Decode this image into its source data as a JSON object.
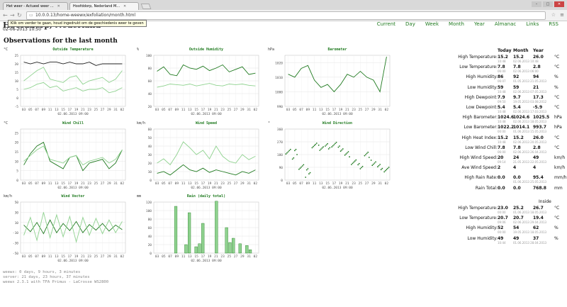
{
  "browser": {
    "tabs": [
      {
        "label": "Het weer - Actueel weer ..."
      },
      {
        "label": "Hoofddorp, Nederland M..."
      }
    ],
    "url": "10.0.0.13/home-weewx/exfoliation/month.html",
    "tooltip": "Klik om verder te gaan, houd ingedrukt om de geschiedenis weer te geven"
  },
  "site": {
    "title": "Hoofddorp, Nederland",
    "time": "02-06-2013 10:50",
    "heading": "Observations for the last month"
  },
  "nav": [
    "Current",
    "Day",
    "Week",
    "Month",
    "Year",
    "Almanac",
    "Links",
    "RSS"
  ],
  "colors": {
    "accent": "#1f7a1f",
    "light_green": "#8fd28f",
    "dark_line": "#222222"
  },
  "charts": [
    {
      "title": "Outside Temperature",
      "legend": [
        "Outside Temperature",
        "Dew Point",
        "Inside Temperature"
      ],
      "unit": "°C",
      "y_ticks": [
        "-5",
        "0",
        "5",
        "10",
        "15",
        "20",
        "25"
      ],
      "x_ticks": [
        "03",
        "05",
        "07",
        "09",
        "11",
        "13",
        "15",
        "17",
        "19",
        "21",
        "23",
        "25",
        "27",
        "29",
        "31",
        "02"
      ],
      "date": "02.06.2013 09:00"
    },
    {
      "title": "Outside Humidity",
      "legend": [
        "Outside Humidity",
        "Inside Humidity"
      ],
      "unit": "%",
      "y_ticks": [
        "20",
        "40",
        "60",
        "80",
        "100"
      ],
      "x_ticks": [
        "03",
        "05",
        "07",
        "09",
        "11",
        "13",
        "15",
        "17",
        "19",
        "21",
        "23",
        "25",
        "27",
        "29",
        "31",
        "02"
      ],
      "date": "02.06.2013 09:00"
    },
    {
      "title": "Barometer",
      "legend": [
        "Barometer"
      ],
      "unit": "hPa",
      "y_ticks": [
        "990",
        "1000",
        "1010",
        "1020"
      ],
      "x_ticks": [
        "03",
        "05",
        "07",
        "09",
        "11",
        "13",
        "15",
        "17",
        "19",
        "21",
        "23",
        "25",
        "27",
        "29",
        "31",
        "02"
      ],
      "date": "02.06.2013 09:00"
    },
    {
      "title": "Wind Chill",
      "legend": [
        "Wind Chill",
        "Heat Index"
      ],
      "unit": "°C",
      "y_ticks": [
        "0",
        "5",
        "10",
        "15",
        "20",
        "25"
      ],
      "x_ticks": [
        "03",
        "05",
        "07",
        "09",
        "11",
        "13",
        "15",
        "17",
        "19",
        "21",
        "23",
        "25",
        "27",
        "29",
        "31",
        "02"
      ],
      "date": "02.06.2013 09:00"
    },
    {
      "title": "Wind Speed",
      "legend": [
        "Wind Speed",
        "Gust Speed"
      ],
      "unit": "km/h",
      "y_ticks": [
        "0",
        "10",
        "20",
        "30",
        "40",
        "50",
        "60"
      ],
      "x_ticks": [
        "03",
        "05",
        "07",
        "09",
        "11",
        "13",
        "15",
        "17",
        "19",
        "21",
        "23",
        "25",
        "27",
        "29",
        "31",
        "02"
      ],
      "date": "02.06.2013 09:00"
    },
    {
      "title": "Wind Direction",
      "legend": [
        "Wind Direction"
      ],
      "unit": "°",
      "y_ticks": [
        "0",
        "90",
        "180",
        "270",
        "360"
      ],
      "x_ticks": [
        "03",
        "05",
        "07",
        "09",
        "11",
        "13",
        "15",
        "17",
        "19",
        "21",
        "23",
        "25",
        "27",
        "29",
        "31",
        "02"
      ],
      "date": "02.06.2013 09:00"
    },
    {
      "title": "Wind Vector",
      "legend": [
        "Wind Vector",
        "Gust Vector"
      ],
      "unit": "km/h",
      "y_ticks": [
        "-50",
        "-30",
        "-10",
        "10",
        "30",
        "50"
      ],
      "x_ticks": [
        "03",
        "05",
        "07",
        "09",
        "11",
        "13",
        "15",
        "17",
        "19",
        "21",
        "23",
        "25",
        "27",
        "29",
        "31",
        "02"
      ],
      "date": "02.06.2013 09:00"
    },
    {
      "title": "Rain (daily total)",
      "legend": [
        "Rain (daily total)"
      ],
      "unit": "mm",
      "y_ticks": [
        "0",
        "20",
        "40",
        "60",
        "80",
        "100",
        "120"
      ],
      "x_ticks": [
        "03",
        "05",
        "07",
        "09",
        "11",
        "13",
        "15",
        "17",
        "19",
        "21",
        "23",
        "25",
        "27",
        "29",
        "31",
        "02"
      ],
      "date": "02.06.2013 09:00"
    }
  ],
  "chart_data": [
    {
      "type": "line",
      "title": "Outside Temperature",
      "ylabel": "°C",
      "ylim": [
        -5,
        25
      ],
      "x": [
        "03",
        "05",
        "07",
        "09",
        "11",
        "13",
        "15",
        "17",
        "19",
        "21",
        "23",
        "25",
        "27",
        "29",
        "31",
        "02"
      ],
      "series": [
        {
          "name": "Inside Temperature",
          "values": [
            21,
            20,
            21,
            20,
            21,
            21,
            20,
            21,
            20,
            20,
            21,
            19,
            20,
            20,
            20,
            20
          ]
        },
        {
          "name": "Outside Temperature",
          "values": [
            10,
            13,
            16,
            18,
            11,
            10,
            9,
            12,
            13,
            8,
            10,
            11,
            12,
            9,
            11,
            16
          ]
        },
        {
          "name": "Dew Point",
          "values": [
            5,
            6,
            8,
            9,
            6,
            7,
            4,
            5,
            6,
            4,
            5,
            5,
            6,
            3,
            4,
            6
          ]
        }
      ]
    },
    {
      "type": "line",
      "title": "Outside Humidity",
      "ylabel": "%",
      "ylim": [
        20,
        100
      ],
      "x": [
        "03",
        "05",
        "07",
        "09",
        "11",
        "13",
        "15",
        "17",
        "19",
        "21",
        "23",
        "25",
        "27",
        "29",
        "31",
        "02"
      ],
      "series": [
        {
          "name": "Outside Humidity",
          "values": [
            75,
            82,
            70,
            68,
            85,
            80,
            78,
            83,
            76,
            80,
            85,
            74,
            78,
            82,
            70,
            72
          ]
        },
        {
          "name": "Inside Humidity",
          "values": [
            50,
            52,
            55,
            54,
            53,
            55,
            52,
            54,
            56,
            53,
            52,
            55,
            54,
            55,
            53,
            52
          ]
        }
      ]
    },
    {
      "type": "line",
      "title": "Barometer",
      "ylabel": "hPa",
      "ylim": [
        990,
        1025
      ],
      "x": [
        "03",
        "05",
        "07",
        "09",
        "11",
        "13",
        "15",
        "17",
        "19",
        "21",
        "23",
        "25",
        "27",
        "29",
        "31",
        "02"
      ],
      "series": [
        {
          "name": "Barometer",
          "values": [
            1012,
            1010,
            1016,
            1018,
            1008,
            1003,
            1005,
            1000,
            1005,
            1012,
            1010,
            1014,
            1010,
            1008,
            1000,
            1024
          ]
        }
      ]
    },
    {
      "type": "line",
      "title": "Wind Chill",
      "ylabel": "°C",
      "ylim": [
        0,
        27
      ],
      "x": [
        "03",
        "05",
        "07",
        "09",
        "11",
        "13",
        "15",
        "17",
        "19",
        "21",
        "23",
        "25",
        "27",
        "29",
        "31",
        "02"
      ],
      "series": [
        {
          "name": "Wind Chill",
          "values": [
            8,
            14,
            18,
            20,
            10,
            8,
            6,
            12,
            13,
            5,
            9,
            10,
            11,
            6,
            9,
            16
          ]
        },
        {
          "name": "Heat Index",
          "values": [
            10,
            13,
            16,
            18,
            11,
            10,
            9,
            12,
            13,
            8,
            10,
            11,
            12,
            9,
            11,
            16
          ]
        }
      ]
    },
    {
      "type": "line",
      "title": "Wind Speed",
      "ylabel": "km/h",
      "ylim": [
        0,
        60
      ],
      "x": [
        "03",
        "05",
        "07",
        "09",
        "11",
        "13",
        "15",
        "17",
        "19",
        "21",
        "23",
        "25",
        "27",
        "29",
        "31",
        "02"
      ],
      "series": [
        {
          "name": "Wind Speed",
          "values": [
            8,
            10,
            6,
            12,
            18,
            12,
            10,
            14,
            9,
            12,
            10,
            8,
            6,
            10,
            8,
            12
          ]
        },
        {
          "name": "Gust Speed",
          "values": [
            20,
            25,
            18,
            30,
            45,
            38,
            30,
            35,
            25,
            40,
            28,
            22,
            20,
            30,
            24,
            28
          ]
        }
      ]
    },
    {
      "type": "scatter",
      "title": "Wind Direction",
      "ylabel": "°",
      "ylim": [
        0,
        360
      ],
      "x": [
        "03",
        "05",
        "07",
        "09",
        "11",
        "13",
        "15",
        "17",
        "19",
        "21",
        "23",
        "25",
        "27",
        "29",
        "31",
        "02"
      ],
      "series": [
        {
          "name": "Wind Direction",
          "values": [
            220,
            200,
            100,
            60,
            240,
            230,
            240,
            250,
            220,
            180,
            130,
            100,
            180,
            120,
            90,
            70
          ]
        }
      ]
    },
    {
      "type": "line",
      "title": "Wind Vector",
      "ylabel": "km/h",
      "ylim": [
        -50,
        50
      ],
      "x": [
        "03",
        "05",
        "07",
        "09",
        "11",
        "13",
        "15",
        "17",
        "19",
        "21",
        "23",
        "25",
        "27",
        "29",
        "31",
        "02"
      ],
      "series": [
        {
          "name": "Wind Vector",
          "values": [
            5,
            -8,
            10,
            -12,
            15,
            -10,
            8,
            -6,
            12,
            -10,
            6,
            -5,
            8,
            -7,
            5,
            -4
          ]
        },
        {
          "name": "Gust Vector",
          "values": [
            -15,
            20,
            -25,
            30,
            -20,
            25,
            -18,
            22,
            -28,
            20,
            -15,
            18,
            -12,
            15,
            -10,
            12
          ]
        }
      ]
    },
    {
      "type": "bar",
      "title": "Rain (daily total)",
      "ylabel": "mm",
      "ylim": [
        0,
        120
      ],
      "categories": [
        "03",
        "04",
        "05",
        "06",
        "07",
        "08",
        "09",
        "10",
        "11",
        "12",
        "13",
        "14",
        "15",
        "16",
        "17",
        "18",
        "19",
        "20",
        "21",
        "22",
        "23",
        "24",
        "25",
        "26",
        "27",
        "28",
        "29",
        "30",
        "31",
        "01",
        "02"
      ],
      "values": [
        0,
        0,
        0,
        0,
        0,
        0,
        110,
        0,
        0,
        20,
        95,
        0,
        15,
        22,
        70,
        0,
        0,
        0,
        122,
        0,
        0,
        60,
        25,
        35,
        0,
        22,
        0,
        18,
        8,
        0,
        0
      ]
    }
  ],
  "stats": {
    "headers": [
      "Today",
      "Month",
      "Year"
    ],
    "rows": [
      {
        "label": "High Temperature:",
        "today": "15.2",
        "month": "15.2",
        "year": "26.0",
        "unit": "°C",
        "sub_t": "10:48",
        "sub_m": "02.06.2013 10:48"
      },
      {
        "label": "Low Temperature:",
        "today": "7.8",
        "month": "7.8",
        "year": "2.8",
        "unit": "°C",
        "sub_t": "06:00",
        "sub_m": "02.06.2013 06:00"
      },
      {
        "label": "High Humidity:",
        "today": "86",
        "month": "92",
        "year": "94",
        "unit": "%",
        "sub_t": "06:07",
        "sub_m": "01.05.2013 21.05.2013"
      },
      {
        "label": "Low Humidity:",
        "today": "59",
        "month": "59",
        "year": "21",
        "unit": "%",
        "sub_t": "10:48",
        "sub_m": "02.06.2013 07.05.2013"
      },
      {
        "label": "High Dewpoint:",
        "today": "7.9",
        "month": "9.7",
        "year": "17.3",
        "unit": "°C",
        "sub_t": "09:50",
        "sub_m": "19.05.2013 03.08.2012"
      },
      {
        "label": "Low Dewpoint:",
        "today": "5.4",
        "month": "5.4",
        "year": "-5.9",
        "unit": "°C",
        "sub_t": "10:48",
        "sub_m": "02.06.2013 17.03.2013"
      },
      {
        "label": "High Barometer:",
        "today": "1024.6",
        "month": "1024.6",
        "year": "1025.5",
        "unit": "hPa",
        "sub_t": "10:48",
        "sub_m": "02.06.2013 18.05.2013"
      },
      {
        "label": "Low Barometer:",
        "today": "1022.2",
        "month": "1014.1",
        "year": "993.7",
        "unit": "hPa",
        "sub_t": "00:00",
        "sub_m": "01.06.2013 15.05.2013"
      },
      {
        "label": "High Heat Index:",
        "today": "15.2",
        "month": "15.2",
        "year": "26.0",
        "unit": "°C",
        "sub_t": "10:48",
        "sub_m": "02.06.2013 20.05.2013"
      },
      {
        "label": "Low Wind Chill:",
        "today": "7.8",
        "month": "7.8",
        "year": "2.8",
        "unit": "°C",
        "sub_t": "06:00",
        "sub_m": "02.06.2013 26.04.2013"
      },
      {
        "label": "High Wind Speed:",
        "today": "20",
        "month": "24",
        "year": "49",
        "unit": "km/h",
        "sub_t": "09:14",
        "sub_m": "21.05.2013 22.05.2013"
      },
      {
        "label": "Ave Wind Speed:",
        "today": "2",
        "month": "4",
        "year": "4",
        "unit": "km/h",
        "sub_t": "",
        "sub_m": ""
      },
      {
        "label": "High Rain Rate:",
        "today": "0.0",
        "month": "0.0",
        "year": "95.4",
        "unit": "mm/h",
        "sub_t": "",
        "sub_m": "01.06.2013 25.05.2013"
      },
      {
        "label": "Rain Total:",
        "today": "0.0",
        "month": "0.0",
        "year": "768.8",
        "unit": "mm",
        "sub_t": "",
        "sub_m": ""
      }
    ],
    "inside_label": "Inside",
    "inside_rows": [
      {
        "label": "High Temperature:",
        "today": "23.0",
        "month": "25.2",
        "year": "26.7",
        "unit": "°C",
        "sub_t": "00:00",
        "sub_m": "01.06.2013 18.05.2013"
      },
      {
        "label": "Low Temperature:",
        "today": "20.7",
        "month": "20.7",
        "year": "19.4",
        "unit": "°C",
        "sub_t": "09:06",
        "sub_m": "02.06.2013 29.04.2013"
      },
      {
        "label": "High Humidity:",
        "today": "52",
        "month": "54",
        "year": "62",
        "unit": "%",
        "sub_t": "00:00",
        "sub_m": "19.05.2013 18.05.2013"
      },
      {
        "label": "Low Humidity:",
        "today": "49",
        "month": "49",
        "year": "37",
        "unit": "%",
        "sub_t": "10:44",
        "sub_m": "01.06.2013 28.04.2013"
      }
    ]
  },
  "footer": [
    "weewx: 0 days, 9 hours, 3 minutes",
    "server: 21 days, 23 hours, 37 minutes",
    "weewx 2.3.1 with TFA Primus - LaCrosse WS2800"
  ]
}
